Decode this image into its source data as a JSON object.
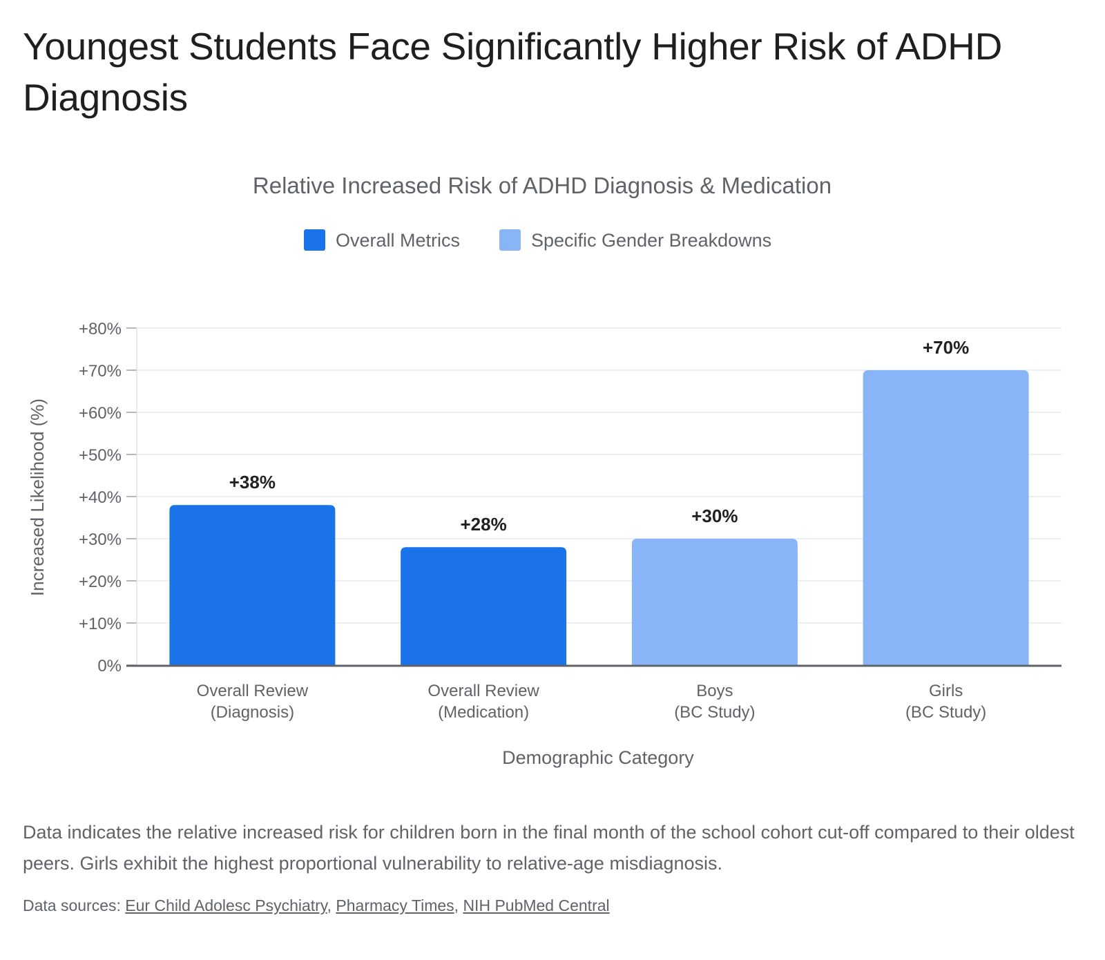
{
  "headline": "Youngest Students Face Significantly Higher Risk of ADHD Diagnosis",
  "chart_data": {
    "type": "bar",
    "title": "Relative Increased Risk of ADHD Diagnosis & Medication",
    "xlabel": "Demographic Category",
    "ylabel": "Increased Likelihood (%)",
    "ylim": [
      0,
      80
    ],
    "yticks": [
      0,
      10,
      20,
      30,
      40,
      50,
      60,
      70,
      80
    ],
    "ytick_labels": [
      "0%",
      "+10%",
      "+20%",
      "+30%",
      "+40%",
      "+50%",
      "+60%",
      "+70%",
      "+80%"
    ],
    "grid": true,
    "legend_position": "top",
    "legend": [
      {
        "name": "Overall Metrics",
        "color": "#1a73e8"
      },
      {
        "name": "Specific Gender Breakdowns",
        "color": "#8ab4f8"
      }
    ],
    "categories": [
      [
        "Overall Review",
        "(Diagnosis)"
      ],
      [
        "Overall Review",
        "(Medication)"
      ],
      [
        "Boys",
        "(BC Study)"
      ],
      [
        "Girls",
        "(BC Study)"
      ]
    ],
    "values": [
      38,
      28,
      30,
      70
    ],
    "value_labels": [
      "+38%",
      "+28%",
      "+30%",
      "+70%"
    ],
    "bar_groups": [
      0,
      0,
      1,
      1
    ]
  },
  "caption": "Data indicates the relative increased risk for children born in the final month of the school cohort cut-off compared to their oldest peers. Girls exhibit the highest proportional vulnerability to relative-age misdiagnosis.",
  "sources": {
    "prefix": "Data sources: ",
    "links": [
      "Eur Child Adolesc Psychiatry",
      "Pharmacy Times",
      "NIH PubMed Central"
    ],
    "separator": ", "
  }
}
